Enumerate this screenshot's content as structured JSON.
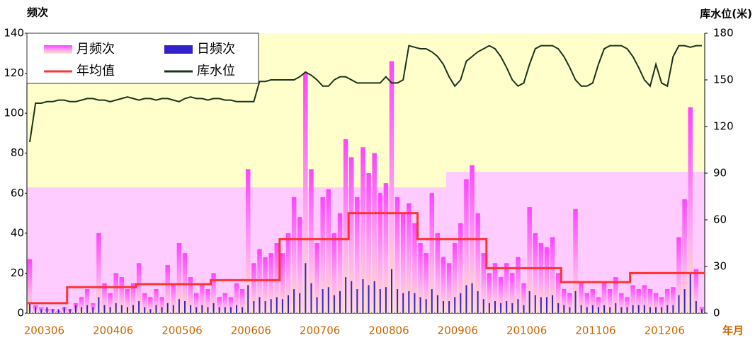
{
  "chart_data": {
    "type": "bar",
    "y_label": "频次",
    "y2_label": "库水位(米)",
    "x_label": "年月",
    "categories": [
      null,
      null,
      null,
      "200306",
      null,
      null,
      null,
      null,
      null,
      null,
      null,
      null,
      null,
      null,
      null,
      "200406",
      null,
      null,
      null,
      null,
      null,
      null,
      null,
      null,
      null,
      null,
      null,
      "200506",
      null,
      null,
      null,
      null,
      null,
      null,
      null,
      null,
      null,
      null,
      null,
      "200606",
      null,
      null,
      null,
      null,
      null,
      null,
      null,
      null,
      null,
      null,
      null,
      "200706",
      null,
      null,
      null,
      null,
      null,
      null,
      null,
      null,
      null,
      null,
      null,
      "200806",
      null,
      null,
      null,
      null,
      null,
      null,
      null,
      null,
      null,
      null,
      null,
      "200906",
      null,
      null,
      null,
      null,
      null,
      null,
      null,
      null,
      null,
      null,
      null,
      "201006",
      null,
      null,
      null,
      null,
      null,
      null,
      null,
      null,
      null,
      null,
      null,
      "201106",
      null,
      null,
      null,
      null,
      null,
      null,
      null,
      null,
      null,
      null,
      null,
      "201206",
      null,
      null,
      null,
      null,
      null,
      null
    ],
    "series": [
      {
        "name": "月频次",
        "type": "bar",
        "color": "#ff44ff",
        "values": [
          27,
          4,
          3,
          2,
          2,
          1,
          3,
          2,
          5,
          8,
          12,
          5,
          40,
          15,
          10,
          20,
          18,
          12,
          15,
          25,
          10,
          8,
          12,
          8,
          24,
          15,
          35,
          30,
          18,
          10,
          15,
          12,
          20,
          8,
          10,
          8,
          15,
          12,
          72,
          25,
          32,
          28,
          30,
          35,
          30,
          40,
          58,
          48,
          120,
          72,
          35,
          58,
          62,
          40,
          50,
          87,
          78,
          58,
          83,
          70,
          80,
          60,
          65,
          126,
          58,
          50,
          55,
          45,
          35,
          30,
          60,
          40,
          28,
          25,
          35,
          45,
          67,
          74,
          50,
          30,
          20,
          25,
          18,
          25,
          20,
          28,
          15,
          53,
          40,
          35,
          33,
          38,
          20,
          12,
          10,
          52,
          15,
          10,
          12,
          8,
          15,
          12,
          18,
          10,
          8,
          14,
          12,
          14,
          12,
          10,
          8,
          12,
          13,
          38,
          57,
          103,
          22,
          3
        ]
      },
      {
        "name": "日频次",
        "type": "spike",
        "color": "#3322cc",
        "values": [
          5,
          3,
          2,
          3,
          2,
          2,
          3,
          2,
          4,
          3,
          4,
          3,
          8,
          4,
          3,
          5,
          4,
          3,
          4,
          6,
          3,
          2,
          4,
          3,
          5,
          4,
          7,
          6,
          4,
          3,
          4,
          3,
          5,
          3,
          3,
          3,
          4,
          3,
          14,
          6,
          8,
          6,
          7,
          8,
          7,
          9,
          12,
          10,
          25,
          15,
          8,
          12,
          13,
          9,
          11,
          18,
          16,
          12,
          17,
          14,
          16,
          12,
          13,
          22,
          12,
          10,
          11,
          10,
          8,
          7,
          12,
          9,
          6,
          6,
          8,
          10,
          14,
          15,
          11,
          7,
          5,
          6,
          5,
          6,
          5,
          7,
          4,
          11,
          9,
          8,
          8,
          9,
          5,
          4,
          3,
          11,
          4,
          3,
          4,
          3,
          4,
          3,
          5,
          3,
          3,
          4,
          4,
          4,
          3,
          3,
          3,
          4,
          4,
          9,
          12,
          20,
          6,
          2
        ]
      },
      {
        "name": "年均值",
        "type": "step",
        "color": "#ff3333",
        "values": [
          5,
          5,
          5,
          5,
          5,
          5,
          5,
          13,
          13,
          13,
          13,
          13,
          13,
          13,
          13,
          13,
          13,
          13,
          13,
          14.5,
          14.5,
          14.5,
          14.5,
          14.5,
          14.5,
          14.5,
          14.5,
          14.5,
          14.5,
          14.5,
          14.5,
          14.5,
          16.5,
          16.5,
          16.5,
          16.5,
          16.5,
          16.5,
          16.5,
          16.5,
          16.5,
          16.5,
          16.5,
          16.5,
          37,
          37,
          37,
          37,
          37,
          37,
          37,
          37,
          37,
          37,
          37,
          37,
          50,
          50,
          50,
          50,
          50,
          50,
          50,
          50,
          50,
          50,
          50,
          50,
          37,
          37,
          37,
          37,
          37,
          37,
          37,
          37,
          37,
          37,
          37,
          37,
          22.5,
          22.5,
          22.5,
          22.5,
          22.5,
          22.5,
          22.5,
          22.5,
          22.5,
          22.5,
          22.5,
          22.5,
          22.5,
          15.5,
          15.5,
          15.5,
          15.5,
          15.5,
          15.5,
          15.5,
          15.5,
          15.5,
          15.5,
          15.5,
          15.5,
          20,
          20,
          20,
          20,
          20,
          20,
          20,
          20,
          20,
          20,
          20,
          20,
          20
        ]
      },
      {
        "name": "库水位",
        "type": "line",
        "axis": "y2",
        "color": "#1a331a",
        "values": [
          110,
          135,
          135,
          136,
          136,
          137,
          137,
          136,
          136,
          137,
          138,
          138,
          137,
          137,
          136,
          137,
          138,
          139,
          138,
          137,
          138,
          138,
          137,
          138,
          138,
          137,
          136,
          138,
          139,
          138,
          138,
          137,
          138,
          138,
          137,
          137,
          136,
          136,
          136,
          136,
          149,
          149,
          150,
          150,
          150,
          150,
          150,
          152,
          155,
          153,
          150,
          146,
          146,
          150,
          152,
          152,
          150,
          148,
          148,
          148,
          148,
          148,
          152,
          148,
          148,
          150,
          172,
          171,
          170,
          170,
          168,
          165,
          160,
          152,
          146,
          150,
          162,
          165,
          168,
          170,
          172,
          170,
          165,
          158,
          150,
          146,
          148,
          160,
          170,
          172,
          172,
          172,
          170,
          165,
          158,
          150,
          146,
          146,
          148,
          160,
          170,
          172,
          172,
          172,
          170,
          165,
          158,
          150,
          146,
          160,
          148,
          146,
          165,
          172,
          172,
          171,
          172,
          172
        ]
      }
    ],
    "ylim": [
      0,
      140
    ],
    "yticks": [
      0,
      20,
      40,
      60,
      80,
      100,
      120,
      140
    ],
    "y2lim": [
      0,
      180
    ],
    "y2ticks": [
      0,
      30,
      60,
      90,
      120,
      150,
      180
    ],
    "grid": false,
    "legend": "upper left"
  }
}
